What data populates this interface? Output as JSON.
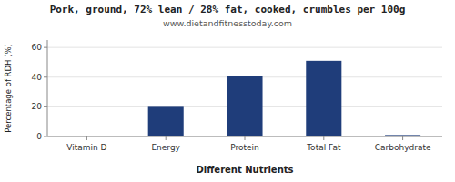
{
  "chart_data": {
    "type": "bar",
    "title": "Pork, ground, 72% lean / 28% fat, cooked, crumbles per 100g",
    "subtitle": "www.dietandfitnesstoday.com",
    "categories": [
      "Vitamin D",
      "Energy",
      "Protein",
      "Total Fat",
      "Carbohydrate"
    ],
    "values": [
      0.3,
      20,
      41,
      51,
      1
    ],
    "color": "#1f3d7a",
    "ylabel": "Percentage of RDH (%)",
    "xlabel": "Different Nutrients",
    "ylim": [
      0,
      65
    ],
    "yticks": [
      0,
      20,
      40,
      60
    ],
    "grid": true
  }
}
